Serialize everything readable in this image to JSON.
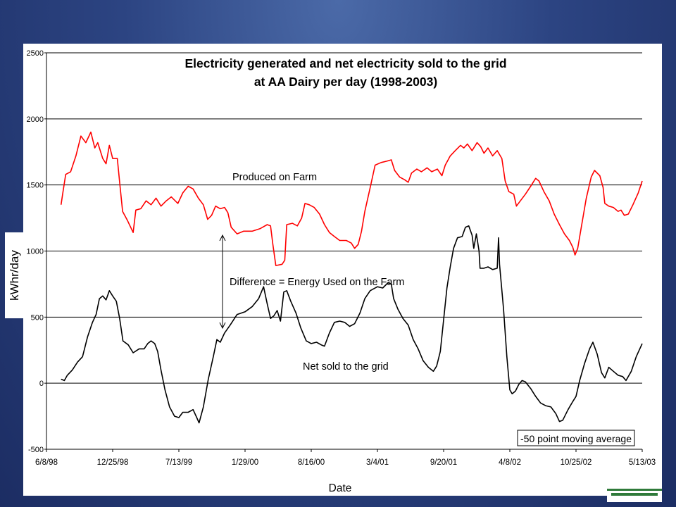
{
  "chart_data": {
    "type": "line",
    "title": "Electricity generated and net electricity sold to the grid",
    "subtitle": "at AA Dairy per day (1998-2003)",
    "xlabel": "Date",
    "ylabel": "kWhr/day",
    "ylim": [
      -500,
      2500
    ],
    "yticks": [
      -500,
      0,
      500,
      1000,
      1500,
      2000,
      2500
    ],
    "xlim": [
      "1998-06-08",
      "2003-05-13"
    ],
    "xticks": [
      {
        "label": "6/8/98",
        "date": "1998-06-08"
      },
      {
        "label": "12/25/98",
        "date": "1998-12-25"
      },
      {
        "label": "7/13/99",
        "date": "1999-07-13"
      },
      {
        "label": "1/29/00",
        "date": "2000-01-29"
      },
      {
        "label": "8/16/00",
        "date": "2000-08-16"
      },
      {
        "label": "3/4/01",
        "date": "2001-03-04"
      },
      {
        "label": "9/20/01",
        "date": "2001-09-20"
      },
      {
        "label": "4/8/02",
        "date": "2002-04-08"
      },
      {
        "label": "10/25/02",
        "date": "2002-10-25"
      },
      {
        "label": "5/13/03",
        "date": "2003-05-13"
      }
    ],
    "grid": true,
    "series": [
      {
        "name": "Produced on Farm",
        "color": "#ff0000",
        "points": [
          [
            "1998-07-22",
            1350
          ],
          [
            "1998-07-28",
            1450
          ],
          [
            "1998-08-05",
            1580
          ],
          [
            "1998-08-20",
            1600
          ],
          [
            "1998-09-05",
            1720
          ],
          [
            "1998-09-20",
            1870
          ],
          [
            "1998-10-05",
            1820
          ],
          [
            "1998-10-20",
            1900
          ],
          [
            "1998-11-01",
            1780
          ],
          [
            "1998-11-10",
            1820
          ],
          [
            "1998-11-25",
            1700
          ],
          [
            "1998-12-05",
            1660
          ],
          [
            "1998-12-15",
            1800
          ],
          [
            "1998-12-25",
            1700
          ],
          [
            "1999-01-08",
            1700
          ],
          [
            "1999-01-16",
            1500
          ],
          [
            "1999-01-24",
            1300
          ],
          [
            "1999-02-08",
            1230
          ],
          [
            "1999-02-25",
            1140
          ],
          [
            "1999-03-05",
            1310
          ],
          [
            "1999-03-20",
            1320
          ],
          [
            "1999-04-05",
            1380
          ],
          [
            "1999-04-20",
            1350
          ],
          [
            "1999-05-05",
            1400
          ],
          [
            "1999-05-20",
            1340
          ],
          [
            "1999-06-05",
            1380
          ],
          [
            "1999-06-20",
            1410
          ],
          [
            "1999-07-10",
            1360
          ],
          [
            "1999-07-25",
            1440
          ],
          [
            "1999-08-10",
            1490
          ],
          [
            "1999-08-25",
            1470
          ],
          [
            "1999-09-10",
            1400
          ],
          [
            "1999-09-25",
            1350
          ],
          [
            "1999-10-08",
            1240
          ],
          [
            "1999-10-20",
            1270
          ],
          [
            "1999-11-01",
            1340
          ],
          [
            "1999-11-15",
            1320
          ],
          [
            "1999-11-28",
            1330
          ],
          [
            "1999-12-08",
            1290
          ],
          [
            "1999-12-18",
            1180
          ],
          [
            "2000-01-05",
            1130
          ],
          [
            "2000-01-25",
            1150
          ],
          [
            "2000-02-20",
            1150
          ],
          [
            "2000-03-15",
            1170
          ],
          [
            "2000-04-05",
            1200
          ],
          [
            "2000-04-15",
            1190
          ],
          [
            "2000-04-22",
            1050
          ],
          [
            "2000-05-01",
            890
          ],
          [
            "2000-05-20",
            900
          ],
          [
            "2000-05-28",
            930
          ],
          [
            "2000-06-03",
            1200
          ],
          [
            "2000-06-20",
            1210
          ],
          [
            "2000-07-05",
            1190
          ],
          [
            "2000-07-18",
            1250
          ],
          [
            "2000-07-28",
            1360
          ],
          [
            "2000-08-10",
            1350
          ],
          [
            "2000-08-25",
            1330
          ],
          [
            "2000-09-10",
            1280
          ],
          [
            "2000-09-25",
            1200
          ],
          [
            "2000-10-10",
            1140
          ],
          [
            "2000-10-25",
            1110
          ],
          [
            "2000-11-10",
            1080
          ],
          [
            "2000-11-30",
            1080
          ],
          [
            "2000-12-15",
            1060
          ],
          [
            "2000-12-25",
            1020
          ],
          [
            "2001-01-05",
            1050
          ],
          [
            "2001-01-15",
            1150
          ],
          [
            "2001-01-25",
            1300
          ],
          [
            "2001-02-10",
            1480
          ],
          [
            "2001-02-25",
            1650
          ],
          [
            "2001-03-15",
            1670
          ],
          [
            "2001-04-01",
            1680
          ],
          [
            "2001-04-15",
            1690
          ],
          [
            "2001-04-25",
            1610
          ],
          [
            "2001-05-10",
            1560
          ],
          [
            "2001-05-25",
            1540
          ],
          [
            "2001-06-05",
            1520
          ],
          [
            "2001-06-15",
            1590
          ],
          [
            "2001-07-01",
            1620
          ],
          [
            "2001-07-15",
            1600
          ],
          [
            "2001-08-01",
            1630
          ],
          [
            "2001-08-15",
            1600
          ],
          [
            "2001-09-01",
            1620
          ],
          [
            "2001-09-15",
            1570
          ],
          [
            "2001-09-25",
            1650
          ],
          [
            "2001-10-10",
            1720
          ],
          [
            "2001-10-25",
            1760
          ],
          [
            "2001-11-10",
            1800
          ],
          [
            "2001-11-20",
            1780
          ],
          [
            "2001-12-01",
            1810
          ],
          [
            "2001-12-15",
            1760
          ],
          [
            "2001-12-30",
            1820
          ],
          [
            "2002-01-10",
            1790
          ],
          [
            "2002-01-20",
            1740
          ],
          [
            "2002-02-01",
            1780
          ],
          [
            "2002-02-15",
            1720
          ],
          [
            "2002-03-01",
            1760
          ],
          [
            "2002-03-15",
            1700
          ],
          [
            "2002-03-25",
            1530
          ],
          [
            "2002-04-05",
            1450
          ],
          [
            "2002-04-20",
            1430
          ],
          [
            "2002-04-28",
            1340
          ],
          [
            "2002-05-10",
            1380
          ],
          [
            "2002-05-25",
            1430
          ],
          [
            "2002-06-10",
            1490
          ],
          [
            "2002-06-25",
            1550
          ],
          [
            "2002-07-05",
            1530
          ],
          [
            "2002-07-20",
            1450
          ],
          [
            "2002-08-05",
            1380
          ],
          [
            "2002-08-20",
            1280
          ],
          [
            "2002-09-05",
            1200
          ],
          [
            "2002-09-20",
            1130
          ],
          [
            "2002-10-05",
            1080
          ],
          [
            "2002-10-15",
            1030
          ],
          [
            "2002-10-22",
            970
          ],
          [
            "2002-10-30",
            1020
          ],
          [
            "2002-11-10",
            1180
          ],
          [
            "2002-11-25",
            1400
          ],
          [
            "2002-12-10",
            1560
          ],
          [
            "2002-12-20",
            1610
          ],
          [
            "2003-01-05",
            1570
          ],
          [
            "2003-01-15",
            1480
          ],
          [
            "2003-01-20",
            1360
          ],
          [
            "2003-02-01",
            1340
          ],
          [
            "2003-02-15",
            1330
          ],
          [
            "2003-03-01",
            1300
          ],
          [
            "2003-03-10",
            1310
          ],
          [
            "2003-03-20",
            1270
          ],
          [
            "2003-04-01",
            1280
          ],
          [
            "2003-04-15",
            1350
          ],
          [
            "2003-05-01",
            1440
          ],
          [
            "2003-05-13",
            1530
          ]
        ]
      },
      {
        "name": "Net sold to the grid",
        "color": "#000000",
        "points": [
          [
            "1998-07-22",
            30
          ],
          [
            "1998-08-01",
            20
          ],
          [
            "1998-08-10",
            60
          ],
          [
            "1998-08-25",
            100
          ],
          [
            "1998-09-10",
            160
          ],
          [
            "1998-09-25",
            200
          ],
          [
            "1998-10-10",
            350
          ],
          [
            "1998-10-25",
            460
          ],
          [
            "1998-11-05",
            520
          ],
          [
            "1998-11-15",
            640
          ],
          [
            "1998-11-25",
            660
          ],
          [
            "1998-12-05",
            630
          ],
          [
            "1998-12-15",
            700
          ],
          [
            "1998-12-25",
            660
          ],
          [
            "1999-01-05",
            620
          ],
          [
            "1999-01-15",
            490
          ],
          [
            "1999-01-25",
            320
          ],
          [
            "1999-02-10",
            290
          ],
          [
            "1999-02-25",
            230
          ],
          [
            "1999-03-15",
            260
          ],
          [
            "1999-03-30",
            260
          ],
          [
            "1999-04-10",
            300
          ],
          [
            "1999-04-20",
            320
          ],
          [
            "1999-05-01",
            300
          ],
          [
            "1999-05-10",
            240
          ],
          [
            "1999-05-20",
            100
          ],
          [
            "1999-06-01",
            -50
          ],
          [
            "1999-06-15",
            -180
          ],
          [
            "1999-06-30",
            -250
          ],
          [
            "1999-07-13",
            -260
          ],
          [
            "1999-07-25",
            -220
          ],
          [
            "1999-08-10",
            -220
          ],
          [
            "1999-08-25",
            -200
          ],
          [
            "1999-09-05",
            -260
          ],
          [
            "1999-09-12",
            -300
          ],
          [
            "1999-09-25",
            -180
          ],
          [
            "1999-10-10",
            30
          ],
          [
            "1999-10-25",
            200
          ],
          [
            "1999-11-05",
            330
          ],
          [
            "1999-11-15",
            310
          ],
          [
            "1999-11-28",
            380
          ],
          [
            "1999-12-15",
            440
          ],
          [
            "2000-01-05",
            520
          ],
          [
            "2000-01-29",
            540
          ],
          [
            "2000-02-20",
            580
          ],
          [
            "2000-03-10",
            640
          ],
          [
            "2000-03-25",
            730
          ],
          [
            "2000-04-05",
            600
          ],
          [
            "2000-04-15",
            490
          ],
          [
            "2000-04-25",
            510
          ],
          [
            "2000-05-05",
            550
          ],
          [
            "2000-05-15",
            470
          ],
          [
            "2000-05-25",
            690
          ],
          [
            "2000-06-03",
            700
          ],
          [
            "2000-06-15",
            620
          ],
          [
            "2000-07-01",
            530
          ],
          [
            "2000-07-15",
            420
          ],
          [
            "2000-08-01",
            320
          ],
          [
            "2000-08-16",
            300
          ],
          [
            "2000-09-01",
            310
          ],
          [
            "2000-09-15",
            290
          ],
          [
            "2000-09-25",
            280
          ],
          [
            "2000-10-10",
            380
          ],
          [
            "2000-10-25",
            460
          ],
          [
            "2000-11-10",
            470
          ],
          [
            "2000-11-25",
            460
          ],
          [
            "2000-12-10",
            430
          ],
          [
            "2000-12-25",
            450
          ],
          [
            "2001-01-10",
            530
          ],
          [
            "2001-01-25",
            640
          ],
          [
            "2001-02-10",
            700
          ],
          [
            "2001-03-04",
            730
          ],
          [
            "2001-03-20",
            720
          ],
          [
            "2001-04-05",
            760
          ],
          [
            "2001-04-15",
            750
          ],
          [
            "2001-04-22",
            640
          ],
          [
            "2001-05-05",
            560
          ],
          [
            "2001-05-20",
            490
          ],
          [
            "2001-06-05",
            440
          ],
          [
            "2001-06-20",
            330
          ],
          [
            "2001-07-05",
            260
          ],
          [
            "2001-07-20",
            170
          ],
          [
            "2001-08-05",
            120
          ],
          [
            "2001-08-20",
            90
          ],
          [
            "2001-08-30",
            130
          ],
          [
            "2001-09-10",
            240
          ],
          [
            "2001-09-20",
            480
          ],
          [
            "2001-09-30",
            720
          ],
          [
            "2001-10-10",
            880
          ],
          [
            "2001-10-20",
            1020
          ],
          [
            "2001-11-01",
            1100
          ],
          [
            "2001-11-15",
            1110
          ],
          [
            "2001-11-25",
            1180
          ],
          [
            "2001-12-05",
            1190
          ],
          [
            "2001-12-15",
            1120
          ],
          [
            "2001-12-20",
            1020
          ],
          [
            "2001-12-28",
            1130
          ],
          [
            "2002-01-05",
            1000
          ],
          [
            "2002-01-08",
            870
          ],
          [
            "2002-01-20",
            870
          ],
          [
            "2002-02-01",
            880
          ],
          [
            "2002-02-15",
            860
          ],
          [
            "2002-03-01",
            870
          ],
          [
            "2002-03-05",
            1100
          ],
          [
            "2002-03-08",
            900
          ],
          [
            "2002-03-20",
            560
          ],
          [
            "2002-03-30",
            200
          ],
          [
            "2002-04-08",
            -50
          ],
          [
            "2002-04-15",
            -80
          ],
          [
            "2002-04-25",
            -60
          ],
          [
            "2002-05-05",
            -10
          ],
          [
            "2002-05-15",
            20
          ],
          [
            "2002-05-25",
            10
          ],
          [
            "2002-06-10",
            -40
          ],
          [
            "2002-06-25",
            -100
          ],
          [
            "2002-07-10",
            -150
          ],
          [
            "2002-07-25",
            -170
          ],
          [
            "2002-08-10",
            -180
          ],
          [
            "2002-08-25",
            -230
          ],
          [
            "2002-09-05",
            -290
          ],
          [
            "2002-09-15",
            -280
          ],
          [
            "2002-10-01",
            -200
          ],
          [
            "2002-10-15",
            -140
          ],
          [
            "2002-10-25",
            -100
          ],
          [
            "2002-11-05",
            20
          ],
          [
            "2002-11-20",
            150
          ],
          [
            "2002-12-05",
            260
          ],
          [
            "2002-12-15",
            310
          ],
          [
            "2002-12-28",
            220
          ],
          [
            "2003-01-10",
            80
          ],
          [
            "2003-01-20",
            40
          ],
          [
            "2003-02-01",
            120
          ],
          [
            "2003-02-15",
            90
          ],
          [
            "2003-03-01",
            60
          ],
          [
            "2003-03-15",
            50
          ],
          [
            "2003-03-25",
            20
          ],
          [
            "2003-04-10",
            90
          ],
          [
            "2003-04-25",
            200
          ],
          [
            "2003-05-13",
            300
          ]
        ]
      }
    ],
    "annotations": {
      "produced_label": "Produced on Farm",
      "difference_label": "Difference = Energy Used on the Farm",
      "net_label": "Net sold to the grid",
      "moving_avg_label": "-50 point moving average"
    }
  }
}
